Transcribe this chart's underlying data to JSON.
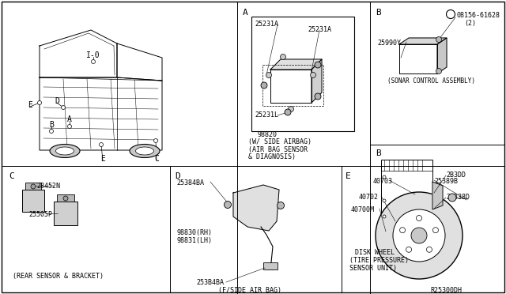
{
  "bg_color": "#ffffff",
  "text_color": "#000000",
  "sections": {
    "A_label": "A",
    "A_parts": [
      "25231A",
      "25231A",
      "25231L"
    ],
    "A_caption1": "98820",
    "A_caption2": "(W/ SIDE AIRBAG)",
    "A_caption3": "(AIR BAG SENSOR",
    "A_caption4": "& DIAGNOSIS)",
    "B_label": "B",
    "B_s_label": "S",
    "B_part_num": "08156-61628",
    "B_qty": "(2)",
    "B_part2": "25990Y",
    "B_caption": "(SONAR CONTROL ASSEMBLY)",
    "B2_label": "B",
    "B2_part1": "2B3DD",
    "B2_part2": "25338D",
    "C_label": "C",
    "C_part1": "28452N",
    "C_part2": "25505P",
    "C_caption": "(REAR SENSOR & BRACKET)",
    "D_label": "D",
    "D_part1": "25384BA",
    "D_part2": "98830(RH)",
    "D_part3": "98831(LH)",
    "D_part4": "253B4BA",
    "D_caption": "(F/SIDE AIR BAG)",
    "E_label": "E",
    "E_part1": "40703",
    "E_part2": "25389B",
    "E_part3": "40702",
    "E_part4": "40700M",
    "E_caption1": "DISK WHEEL",
    "E_caption2": "(TIRE PRESSURE)",
    "E_caption3": "SENSOR UNIT)",
    "E_ref": "R25300DH"
  },
  "fs_big": 7,
  "fs_med": 6,
  "fs_small": 5.5
}
